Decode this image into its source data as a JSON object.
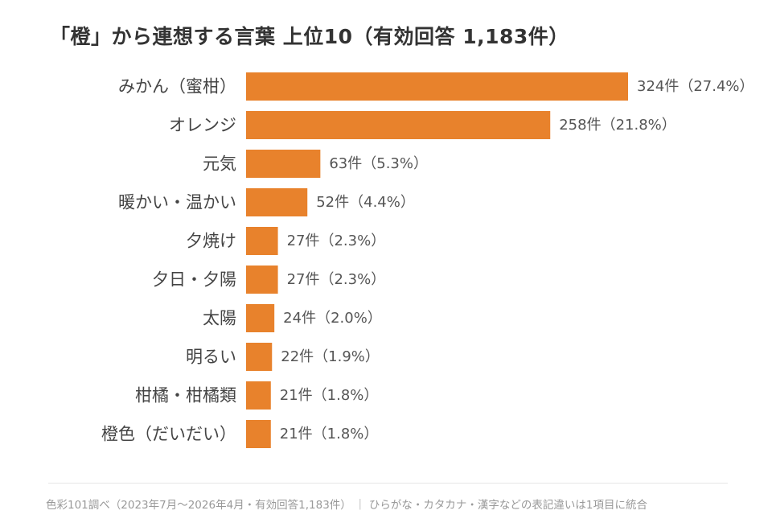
{
  "chart_data": {
    "type": "bar",
    "orientation": "horizontal",
    "title": "「橙」から連想する言葉 上位10（有効回答 1,183件）",
    "categories": [
      "みかん（蜜柑）",
      "オレンジ",
      "元気",
      "暖かい・温かい",
      "夕焼け",
      "夕日・夕陽",
      "太陽",
      "明るい",
      "柑橘・柑橘類",
      "橙色（だいだい）"
    ],
    "values": [
      324,
      258,
      63,
      52,
      27,
      27,
      24,
      22,
      21,
      21
    ],
    "value_labels": [
      "324件（27.4%）",
      "258件（21.8%）",
      "63件（5.3%）",
      "52件（4.4%）",
      "27件（2.3%）",
      "27件（2.3%）",
      "24件（2.0%）",
      "22件（1.9%）",
      "21件（1.8%）",
      "21件（1.8%）"
    ],
    "bar_color": "#E8822C",
    "xlim": [
      0,
      324
    ],
    "grid": false,
    "legend": "none"
  },
  "footnote": "色彩101調べ（2023年7月〜2026年4月・有効回答1,183件） ｜ ひらがな・カタカナ・漢字などの表記違いは1項目に統合"
}
